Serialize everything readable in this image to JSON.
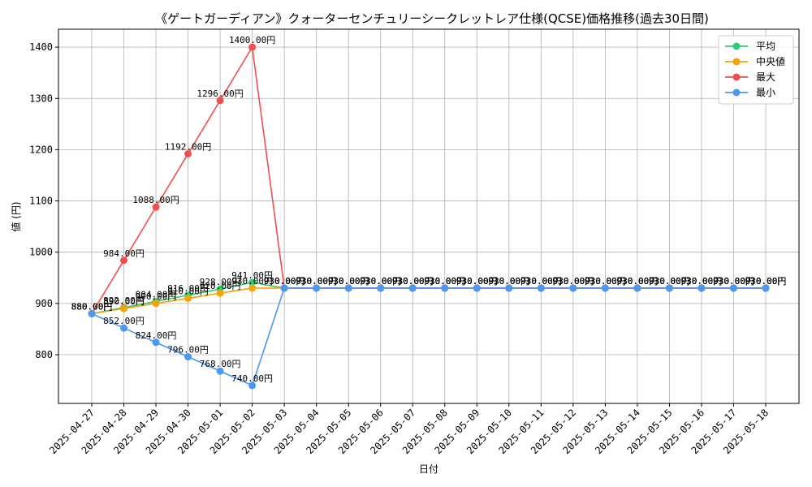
{
  "chart_data": {
    "type": "line",
    "title": "《ゲートガーディアン》クォーターセンチュリーシークレットレア仕様(QCSE)価格推移(過去30日間)",
    "xlabel": "日付",
    "ylabel": "値 (円)",
    "ylim": [
      705,
      1435
    ],
    "yticks": [
      800,
      900,
      1000,
      1100,
      1200,
      1300,
      1400
    ],
    "grid": true,
    "legend_position": "top-right",
    "label_suffix": "円",
    "categories": [
      "2025-04-27",
      "2025-04-28",
      "2025-04-29",
      "2025-04-30",
      "2025-05-01",
      "2025-05-02",
      "2025-05-03",
      "2025-05-04",
      "2025-05-05",
      "2025-05-06",
      "2025-05-07",
      "2025-05-08",
      "2025-05-09",
      "2025-05-10",
      "2025-05-11",
      "2025-05-12",
      "2025-05-13",
      "2025-05-14",
      "2025-05-15",
      "2025-05-16",
      "2025-05-17",
      "2025-05-18"
    ],
    "series": [
      {
        "name": "平均",
        "color": "#2ecc71",
        "values": [
          880,
          892,
          904,
          916,
          928,
          941,
          930,
          930,
          930,
          930,
          930,
          930,
          930,
          930,
          930,
          930,
          930,
          930,
          930,
          930,
          930,
          930
        ]
      },
      {
        "name": "中央値",
        "color": "#f5a30a",
        "values": [
          880,
          890,
          900,
          910,
          920,
          930,
          930,
          930,
          930,
          930,
          930,
          930,
          930,
          930,
          930,
          930,
          930,
          930,
          930,
          930,
          930,
          930
        ]
      },
      {
        "name": "最大",
        "color": "#ef4f4f",
        "values": [
          880,
          984,
          1088,
          1192,
          1296,
          1400,
          930,
          930,
          930,
          930,
          930,
          930,
          930,
          930,
          930,
          930,
          930,
          930,
          930,
          930,
          930,
          930
        ]
      },
      {
        "name": "最小",
        "color": "#4a98f0",
        "values": [
          880,
          852,
          824,
          796,
          768,
          740,
          930,
          930,
          930,
          930,
          930,
          930,
          930,
          930,
          930,
          930,
          930,
          930,
          930,
          930,
          930,
          930
        ]
      }
    ]
  }
}
